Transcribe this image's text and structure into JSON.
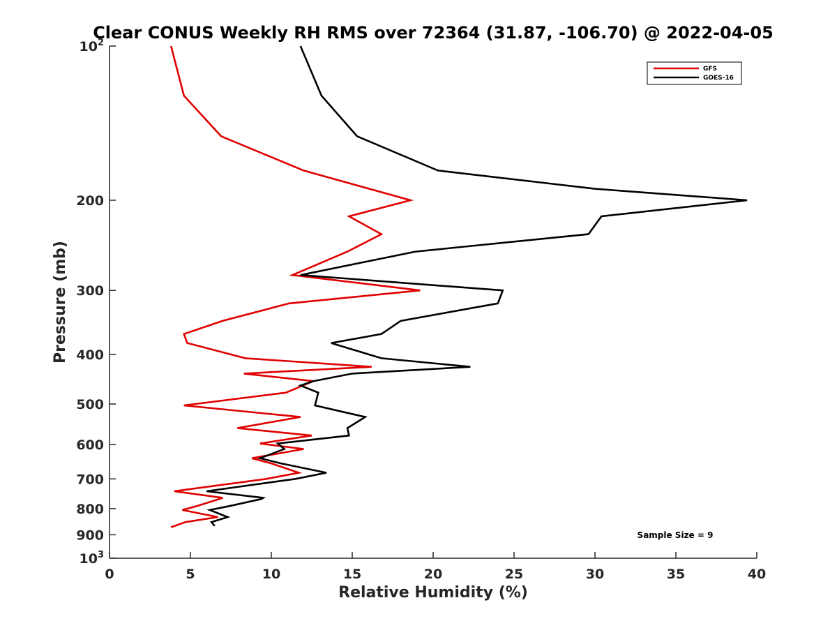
{
  "chart_data": {
    "type": "line",
    "title": "Clear CONUS Weekly RH RMS over 72364 (31.87, -106.70) @ 2022-04-05",
    "xlabel": "Relative Humidity (%)",
    "ylabel": "Pressure (mb)",
    "xlim": [
      0,
      40
    ],
    "ylim": [
      100,
      1000
    ],
    "yscale": "log",
    "y_reversed": true,
    "grid": false,
    "legend_position": "top-right",
    "x_ticks": [
      0,
      5,
      10,
      15,
      20,
      25,
      30,
      35,
      40
    ],
    "y_ticks": [
      {
        "value": 100,
        "label": "10",
        "sup": "2"
      },
      {
        "value": 200,
        "label": "200",
        "sup": ""
      },
      {
        "value": 300,
        "label": "300",
        "sup": ""
      },
      {
        "value": 400,
        "label": "400",
        "sup": ""
      },
      {
        "value": 500,
        "label": "500",
        "sup": ""
      },
      {
        "value": 600,
        "label": "600",
        "sup": ""
      },
      {
        "value": 700,
        "label": "700",
        "sup": ""
      },
      {
        "value": 800,
        "label": "800",
        "sup": ""
      },
      {
        "value": 900,
        "label": "900",
        "sup": ""
      },
      {
        "value": 1000,
        "label": "10",
        "sup": "3"
      }
    ],
    "series": [
      {
        "name": "GFS",
        "color": "#e00000",
        "points": [
          [
            3.8,
            100
          ],
          [
            4.6,
            125
          ],
          [
            6.9,
            150
          ],
          [
            12.0,
            175
          ],
          [
            18.6,
            200
          ],
          [
            14.8,
            215
          ],
          [
            16.8,
            233
          ],
          [
            14.7,
            252
          ],
          [
            11.3,
            280
          ],
          [
            19.2,
            300
          ],
          [
            11.1,
            318
          ],
          [
            7.0,
            344
          ],
          [
            4.6,
            365
          ],
          [
            4.8,
            380
          ],
          [
            8.4,
            407
          ],
          [
            16.2,
            423
          ],
          [
            8.3,
            436
          ],
          [
            12.6,
            451
          ],
          [
            10.9,
            475
          ],
          [
            4.6,
            503
          ],
          [
            11.8,
            530
          ],
          [
            7.9,
            557
          ],
          [
            12.5,
            576
          ],
          [
            9.3,
            597
          ],
          [
            12.0,
            612
          ],
          [
            8.8,
            638
          ],
          [
            10.0,
            653
          ],
          [
            11.7,
            681
          ],
          [
            9.7,
            700
          ],
          [
            4.0,
            740
          ],
          [
            7.0,
            762
          ],
          [
            6.8,
            766
          ],
          [
            5.4,
            791
          ],
          [
            4.5,
            805
          ],
          [
            6.7,
            831
          ],
          [
            4.7,
            850
          ],
          [
            3.8,
            870
          ]
        ]
      },
      {
        "name": "GOES-16",
        "color": "#000000",
        "points": [
          [
            11.8,
            100
          ],
          [
            13.1,
            125
          ],
          [
            15.3,
            150
          ],
          [
            20.3,
            175
          ],
          [
            30.0,
            190
          ],
          [
            39.4,
            200
          ],
          [
            30.4,
            215
          ],
          [
            29.6,
            233
          ],
          [
            18.9,
            252
          ],
          [
            11.8,
            280
          ],
          [
            24.3,
            300
          ],
          [
            24.0,
            318
          ],
          [
            18.0,
            344
          ],
          [
            16.8,
            365
          ],
          [
            13.7,
            380
          ],
          [
            16.8,
            407
          ],
          [
            22.3,
            423
          ],
          [
            15.0,
            436
          ],
          [
            12.6,
            451
          ],
          [
            11.8,
            460
          ],
          [
            12.9,
            475
          ],
          [
            12.7,
            503
          ],
          [
            15.8,
            530
          ],
          [
            14.7,
            557
          ],
          [
            14.8,
            576
          ],
          [
            10.4,
            597
          ],
          [
            10.8,
            612
          ],
          [
            9.3,
            638
          ],
          [
            10.6,
            653
          ],
          [
            13.4,
            681
          ],
          [
            11.5,
            700
          ],
          [
            6.0,
            740
          ],
          [
            9.5,
            762
          ],
          [
            9.4,
            766
          ],
          [
            7.4,
            791
          ],
          [
            6.2,
            805
          ],
          [
            7.3,
            831
          ],
          [
            6.3,
            850
          ],
          [
            6.5,
            865
          ]
        ]
      }
    ],
    "annotation": "Sample Size = 9"
  }
}
